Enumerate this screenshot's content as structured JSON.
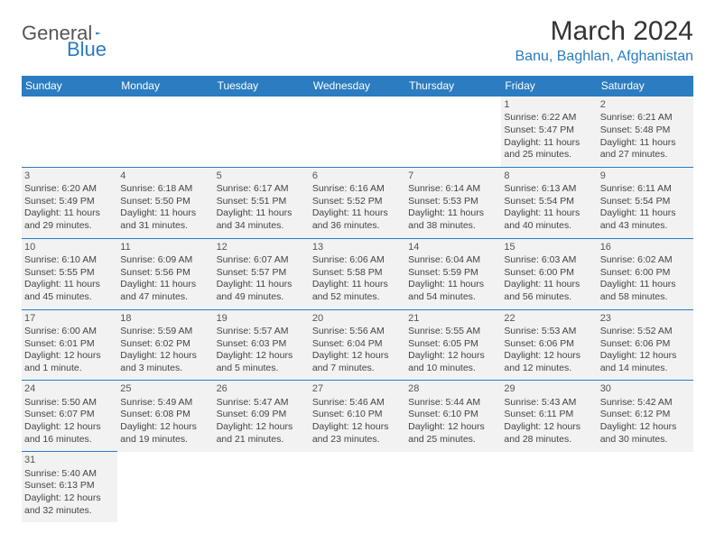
{
  "logo": {
    "general": "General",
    "blue": "Blue"
  },
  "title": "March 2024",
  "location": "Banu, Baghlan, Afghanistan",
  "colors": {
    "header_bg": "#2b7cc0",
    "header_text": "#ffffff",
    "cell_bg": "#f2f2f2",
    "border": "#2b7cc0",
    "title_color": "#333333",
    "location_color": "#2b7cc0"
  },
  "weekdays": [
    "Sunday",
    "Monday",
    "Tuesday",
    "Wednesday",
    "Thursday",
    "Friday",
    "Saturday"
  ],
  "weeks": [
    [
      null,
      null,
      null,
      null,
      null,
      {
        "d": "1",
        "sr": "Sunrise: 6:22 AM",
        "ss": "Sunset: 5:47 PM",
        "dl1": "Daylight: 11 hours",
        "dl2": "and 25 minutes."
      },
      {
        "d": "2",
        "sr": "Sunrise: 6:21 AM",
        "ss": "Sunset: 5:48 PM",
        "dl1": "Daylight: 11 hours",
        "dl2": "and 27 minutes."
      }
    ],
    [
      {
        "d": "3",
        "sr": "Sunrise: 6:20 AM",
        "ss": "Sunset: 5:49 PM",
        "dl1": "Daylight: 11 hours",
        "dl2": "and 29 minutes."
      },
      {
        "d": "4",
        "sr": "Sunrise: 6:18 AM",
        "ss": "Sunset: 5:50 PM",
        "dl1": "Daylight: 11 hours",
        "dl2": "and 31 minutes."
      },
      {
        "d": "5",
        "sr": "Sunrise: 6:17 AM",
        "ss": "Sunset: 5:51 PM",
        "dl1": "Daylight: 11 hours",
        "dl2": "and 34 minutes."
      },
      {
        "d": "6",
        "sr": "Sunrise: 6:16 AM",
        "ss": "Sunset: 5:52 PM",
        "dl1": "Daylight: 11 hours",
        "dl2": "and 36 minutes."
      },
      {
        "d": "7",
        "sr": "Sunrise: 6:14 AM",
        "ss": "Sunset: 5:53 PM",
        "dl1": "Daylight: 11 hours",
        "dl2": "and 38 minutes."
      },
      {
        "d": "8",
        "sr": "Sunrise: 6:13 AM",
        "ss": "Sunset: 5:54 PM",
        "dl1": "Daylight: 11 hours",
        "dl2": "and 40 minutes."
      },
      {
        "d": "9",
        "sr": "Sunrise: 6:11 AM",
        "ss": "Sunset: 5:54 PM",
        "dl1": "Daylight: 11 hours",
        "dl2": "and 43 minutes."
      }
    ],
    [
      {
        "d": "10",
        "sr": "Sunrise: 6:10 AM",
        "ss": "Sunset: 5:55 PM",
        "dl1": "Daylight: 11 hours",
        "dl2": "and 45 minutes."
      },
      {
        "d": "11",
        "sr": "Sunrise: 6:09 AM",
        "ss": "Sunset: 5:56 PM",
        "dl1": "Daylight: 11 hours",
        "dl2": "and 47 minutes."
      },
      {
        "d": "12",
        "sr": "Sunrise: 6:07 AM",
        "ss": "Sunset: 5:57 PM",
        "dl1": "Daylight: 11 hours",
        "dl2": "and 49 minutes."
      },
      {
        "d": "13",
        "sr": "Sunrise: 6:06 AM",
        "ss": "Sunset: 5:58 PM",
        "dl1": "Daylight: 11 hours",
        "dl2": "and 52 minutes."
      },
      {
        "d": "14",
        "sr": "Sunrise: 6:04 AM",
        "ss": "Sunset: 5:59 PM",
        "dl1": "Daylight: 11 hours",
        "dl2": "and 54 minutes."
      },
      {
        "d": "15",
        "sr": "Sunrise: 6:03 AM",
        "ss": "Sunset: 6:00 PM",
        "dl1": "Daylight: 11 hours",
        "dl2": "and 56 minutes."
      },
      {
        "d": "16",
        "sr": "Sunrise: 6:02 AM",
        "ss": "Sunset: 6:00 PM",
        "dl1": "Daylight: 11 hours",
        "dl2": "and 58 minutes."
      }
    ],
    [
      {
        "d": "17",
        "sr": "Sunrise: 6:00 AM",
        "ss": "Sunset: 6:01 PM",
        "dl1": "Daylight: 12 hours",
        "dl2": "and 1 minute."
      },
      {
        "d": "18",
        "sr": "Sunrise: 5:59 AM",
        "ss": "Sunset: 6:02 PM",
        "dl1": "Daylight: 12 hours",
        "dl2": "and 3 minutes."
      },
      {
        "d": "19",
        "sr": "Sunrise: 5:57 AM",
        "ss": "Sunset: 6:03 PM",
        "dl1": "Daylight: 12 hours",
        "dl2": "and 5 minutes."
      },
      {
        "d": "20",
        "sr": "Sunrise: 5:56 AM",
        "ss": "Sunset: 6:04 PM",
        "dl1": "Daylight: 12 hours",
        "dl2": "and 7 minutes."
      },
      {
        "d": "21",
        "sr": "Sunrise: 5:55 AM",
        "ss": "Sunset: 6:05 PM",
        "dl1": "Daylight: 12 hours",
        "dl2": "and 10 minutes."
      },
      {
        "d": "22",
        "sr": "Sunrise: 5:53 AM",
        "ss": "Sunset: 6:06 PM",
        "dl1": "Daylight: 12 hours",
        "dl2": "and 12 minutes."
      },
      {
        "d": "23",
        "sr": "Sunrise: 5:52 AM",
        "ss": "Sunset: 6:06 PM",
        "dl1": "Daylight: 12 hours",
        "dl2": "and 14 minutes."
      }
    ],
    [
      {
        "d": "24",
        "sr": "Sunrise: 5:50 AM",
        "ss": "Sunset: 6:07 PM",
        "dl1": "Daylight: 12 hours",
        "dl2": "and 16 minutes."
      },
      {
        "d": "25",
        "sr": "Sunrise: 5:49 AM",
        "ss": "Sunset: 6:08 PM",
        "dl1": "Daylight: 12 hours",
        "dl2": "and 19 minutes."
      },
      {
        "d": "26",
        "sr": "Sunrise: 5:47 AM",
        "ss": "Sunset: 6:09 PM",
        "dl1": "Daylight: 12 hours",
        "dl2": "and 21 minutes."
      },
      {
        "d": "27",
        "sr": "Sunrise: 5:46 AM",
        "ss": "Sunset: 6:10 PM",
        "dl1": "Daylight: 12 hours",
        "dl2": "and 23 minutes."
      },
      {
        "d": "28",
        "sr": "Sunrise: 5:44 AM",
        "ss": "Sunset: 6:10 PM",
        "dl1": "Daylight: 12 hours",
        "dl2": "and 25 minutes."
      },
      {
        "d": "29",
        "sr": "Sunrise: 5:43 AM",
        "ss": "Sunset: 6:11 PM",
        "dl1": "Daylight: 12 hours",
        "dl2": "and 28 minutes."
      },
      {
        "d": "30",
        "sr": "Sunrise: 5:42 AM",
        "ss": "Sunset: 6:12 PM",
        "dl1": "Daylight: 12 hours",
        "dl2": "and 30 minutes."
      }
    ],
    [
      {
        "d": "31",
        "sr": "Sunrise: 5:40 AM",
        "ss": "Sunset: 6:13 PM",
        "dl1": "Daylight: 12 hours",
        "dl2": "and 32 minutes."
      },
      null,
      null,
      null,
      null,
      null,
      null
    ]
  ]
}
